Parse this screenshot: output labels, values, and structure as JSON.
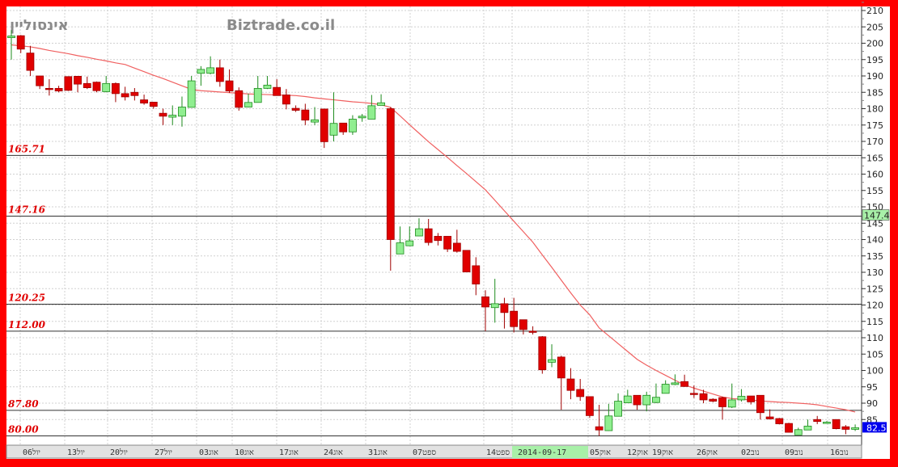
{
  "watermark": {
    "symbol": "אינסוליין",
    "site": "Biztrade.co.il"
  },
  "colors": {
    "frame": "#ff0000",
    "up_fill": "#90ee90",
    "up_line": "#1e8c1e",
    "down_fill": "#e00000",
    "down_line": "#a00000",
    "ma_line": "#f06060",
    "level_line": "#333333",
    "level_label": "#e00000",
    "last_price_box": "#0000ee",
    "marker_box": "#a8f0a8"
  },
  "chart_data": {
    "type": "candlestick",
    "title": "",
    "ylim": [
      78,
      211
    ],
    "yticks": [
      85,
      90,
      95,
      100,
      105,
      110,
      115,
      120,
      125,
      130,
      135,
      140,
      145,
      150,
      155,
      160,
      165,
      170,
      175,
      180,
      185,
      190,
      195,
      200,
      205,
      210
    ],
    "grid": true,
    "xlabels": [
      "06יול",
      "13יול",
      "20יול",
      "27יול",
      "03אוג",
      "10אוג",
      "17אוג",
      "24אוג",
      "31אוג",
      "07ספט",
      "14ספט",
      "05אוק",
      "12אוק",
      "19אוק",
      "26אוק",
      "02נוב",
      "09נוב",
      "16נוב"
    ],
    "highlight_date": "2014-09-17",
    "ohlc_order": [
      "open",
      "high",
      "low",
      "close"
    ],
    "candles": [
      [
        201.7,
        204,
        195,
        202.2
      ],
      [
        202.3,
        202.5,
        197,
        198.2
      ],
      [
        197,
        199.2,
        190,
        191.7
      ],
      [
        190,
        190,
        186,
        187
      ],
      [
        186.2,
        189,
        184,
        186.0
      ],
      [
        186.2,
        187,
        185,
        185.4
      ],
      [
        189.8,
        189.8,
        185.4,
        185.6
      ],
      [
        189.9,
        190,
        185,
        187.5
      ],
      [
        187.7,
        189.8,
        186,
        186.4
      ],
      [
        188.1,
        188.3,
        185,
        185.5
      ],
      [
        185.2,
        190,
        185,
        187.7
      ],
      [
        187.7,
        188,
        182,
        184.6
      ],
      [
        184.6,
        186.7,
        182.5,
        183.6
      ],
      [
        185,
        186.3,
        182.5,
        184
      ],
      [
        182.7,
        184.3,
        181.2,
        181.7
      ],
      [
        182,
        182,
        180,
        180.7
      ],
      [
        178.6,
        180,
        175,
        177.7
      ],
      [
        177.4,
        181,
        175,
        178
      ],
      [
        177.7,
        183.7,
        174.5,
        180.5
      ],
      [
        180.4,
        190,
        180.4,
        188.5
      ],
      [
        190.8,
        193,
        187,
        192
      ],
      [
        190.8,
        196,
        190.5,
        192.5
      ],
      [
        192.5,
        195,
        186.7,
        188.3
      ],
      [
        188.5,
        192,
        184.8,
        185.4
      ],
      [
        185.5,
        186.5,
        179.4,
        180.4
      ],
      [
        180.5,
        184.6,
        180.5,
        181.9
      ],
      [
        181.9,
        190,
        181.9,
        186.2
      ],
      [
        186.2,
        190,
        186,
        187.2
      ],
      [
        186.5,
        189,
        184,
        184
      ],
      [
        184.2,
        186,
        179.8,
        181.4
      ],
      [
        180.1,
        181,
        179,
        179.5
      ],
      [
        179.6,
        181.5,
        175,
        176.5
      ],
      [
        175.9,
        180.5,
        175,
        176.6
      ],
      [
        179.9,
        180,
        168,
        169.9
      ],
      [
        171.9,
        185,
        170,
        175.5
      ],
      [
        175.6,
        175.6,
        172,
        172.9
      ],
      [
        172.9,
        178,
        172,
        176.8
      ],
      [
        177.2,
        178.4,
        176,
        177.7
      ],
      [
        176.8,
        184.2,
        176.8,
        180.9
      ],
      [
        181,
        184.4,
        181,
        181.8
      ],
      [
        180,
        180.5,
        130.5,
        140
      ],
      [
        135.6,
        144,
        135.6,
        139
      ],
      [
        138.1,
        144,
        138,
        139.6
      ],
      [
        141.1,
        146.5,
        141,
        143.3
      ],
      [
        143.3,
        146.3,
        138.2,
        139.1
      ],
      [
        141,
        142,
        138.2,
        139.7
      ],
      [
        141,
        141,
        136.2,
        137.1
      ],
      [
        138.9,
        143,
        136,
        136.4
      ],
      [
        136.7,
        136.7,
        130,
        130.1
      ],
      [
        132,
        134.6,
        123,
        126.4
      ],
      [
        122.5,
        124.5,
        112,
        119.4
      ],
      [
        119.2,
        128,
        114.6,
        120.4
      ],
      [
        120.4,
        122.2,
        112.8,
        117.7
      ],
      [
        118.1,
        122.2,
        111.6,
        113.4
      ],
      [
        115.5,
        115.5,
        111,
        112.5
      ],
      [
        112,
        113.5,
        111,
        111.8
      ],
      [
        110.3,
        110.5,
        99,
        100.2
      ],
      [
        102.5,
        108,
        101,
        103.3
      ],
      [
        104.1,
        104.5,
        88,
        97.7
      ],
      [
        97.4,
        100.7,
        91.2,
        93.9
      ],
      [
        94.2,
        97.4,
        90.7,
        92
      ],
      [
        92,
        92,
        85.5,
        86.2
      ],
      [
        82.8,
        89.5,
        80,
        81.8
      ],
      [
        81.6,
        89.8,
        81.5,
        86.1
      ],
      [
        86,
        93,
        86,
        90.6
      ],
      [
        90.1,
        94.1,
        90,
        92.2
      ],
      [
        92.4,
        92.4,
        88,
        89.5
      ],
      [
        89.5,
        93.5,
        87.5,
        92.4
      ],
      [
        90.2,
        96,
        90,
        91.8
      ],
      [
        93,
        97,
        93,
        95.8
      ],
      [
        95.7,
        98.8,
        95.5,
        96.2
      ],
      [
        96.6,
        98.7,
        95,
        95.1
      ],
      [
        93,
        95.4,
        91.6,
        92.9
      ],
      [
        92.9,
        94.1,
        90,
        91
      ],
      [
        91.2,
        91.5,
        90.3,
        90.6
      ],
      [
        91.7,
        92,
        85,
        88.9
      ],
      [
        88.8,
        96,
        88.5,
        91
      ],
      [
        91,
        94.3,
        90.5,
        92.1
      ],
      [
        92.2,
        92.2,
        89.6,
        90.4
      ],
      [
        92.4,
        92.4,
        85,
        87.1
      ],
      [
        85.8,
        88.1,
        85,
        85.2
      ],
      [
        85.3,
        85.5,
        83.5,
        83.7
      ],
      [
        83.8,
        84,
        81,
        81.1
      ],
      [
        80.3,
        82.5,
        80.3,
        81.9
      ],
      [
        81.8,
        85,
        81.8,
        83
      ],
      [
        85,
        86.1,
        83.6,
        84.4
      ],
      [
        83.8,
        84.5,
        83.8,
        84.2
      ],
      [
        85,
        85,
        82,
        82.2
      ],
      [
        82.8,
        83.3,
        80.5,
        82
      ],
      [
        82,
        83.5,
        81.5,
        82.5
      ]
    ],
    "moving_average": [
      199.5,
      199.2,
      198.9,
      198.4,
      197.8,
      197.3,
      196.8,
      196.2,
      195.7,
      195.1,
      194.6,
      194.0,
      193.5,
      192.4,
      191.3,
      190.2,
      189.2,
      188.1,
      187,
      185.9,
      185.5,
      185.3,
      185.1,
      184.9,
      184.7,
      184.5,
      184.4,
      184.3,
      184.2,
      184.1,
      184,
      183.7,
      183.3,
      183,
      182.7,
      182.4,
      182.1,
      181.9,
      181.6,
      181.2,
      180.4,
      177.8,
      175.1,
      172.5,
      169.9,
      167.5,
      165.1,
      162.6,
      160.2,
      157.7,
      155.2,
      152,
      148.8,
      145.6,
      142.4,
      139.2,
      135.3,
      131.5,
      127.6,
      123.7,
      120,
      117,
      113,
      110.6,
      108.2,
      105.8,
      103.4,
      101.6,
      100,
      98.5,
      97,
      95.6,
      94.6,
      93.7,
      92.8,
      91.9,
      91.4,
      91.2,
      91,
      90.7,
      90.5,
      90.3,
      90.2,
      90,
      89.8,
      89.5,
      89,
      88.5,
      88,
      87.3
    ],
    "levels": [
      {
        "value": 165.71,
        "label": "165.71"
      },
      {
        "value": 147.16,
        "label": "147.16"
      },
      {
        "value": 120.25,
        "label": "120.25"
      },
      {
        "value": 112.0,
        "label": "112.00"
      },
      {
        "value": 87.8,
        "label": "87.80"
      },
      {
        "value": 80.0,
        "label": "80.00"
      }
    ],
    "marker_price": {
      "value": 147.4,
      "label": "147.4"
    },
    "last_price": {
      "value": 82.5,
      "label": "82.5"
    }
  }
}
